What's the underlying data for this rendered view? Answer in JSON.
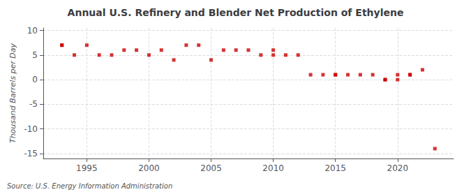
{
  "chart_data": {
    "type": "scatter",
    "title": "Annual U.S. Refinery and Blender Net Production of Ethylene",
    "ylabel": "Thousand Barrels per Day",
    "annotations": [
      "Source: U.S. Energy Information Administration"
    ],
    "x": [
      1993,
      1993,
      1994,
      1995,
      1996,
      1997,
      1998,
      1999,
      2000,
      2001,
      2002,
      2003,
      2004,
      2005,
      2006,
      2007,
      2008,
      2009,
      2010,
      2010,
      2011,
      2012,
      2013,
      2014,
      2015,
      2015,
      2016,
      2017,
      2018,
      2019,
      2019,
      2020,
      2020,
      2021,
      2021,
      2022,
      2023
    ],
    "values": [
      7,
      7,
      5,
      7,
      5,
      5,
      6,
      6,
      5,
      6,
      4,
      7,
      7,
      4,
      6,
      6,
      6,
      5,
      5,
      6,
      5,
      5,
      1,
      1,
      1,
      1,
      1,
      1,
      1,
      0,
      0,
      1,
      0,
      1,
      1,
      2,
      -14
    ],
    "color": "#cc0000",
    "marker": "square",
    "xlim": [
      1991.5,
      2024.5
    ],
    "ylim": [
      -16,
      10.5
    ],
    "xticks": [
      1995,
      2000,
      2005,
      2010,
      2015,
      2020
    ],
    "yticks": [
      -15,
      -10,
      -5,
      0,
      5,
      10
    ],
    "grid": true
  }
}
